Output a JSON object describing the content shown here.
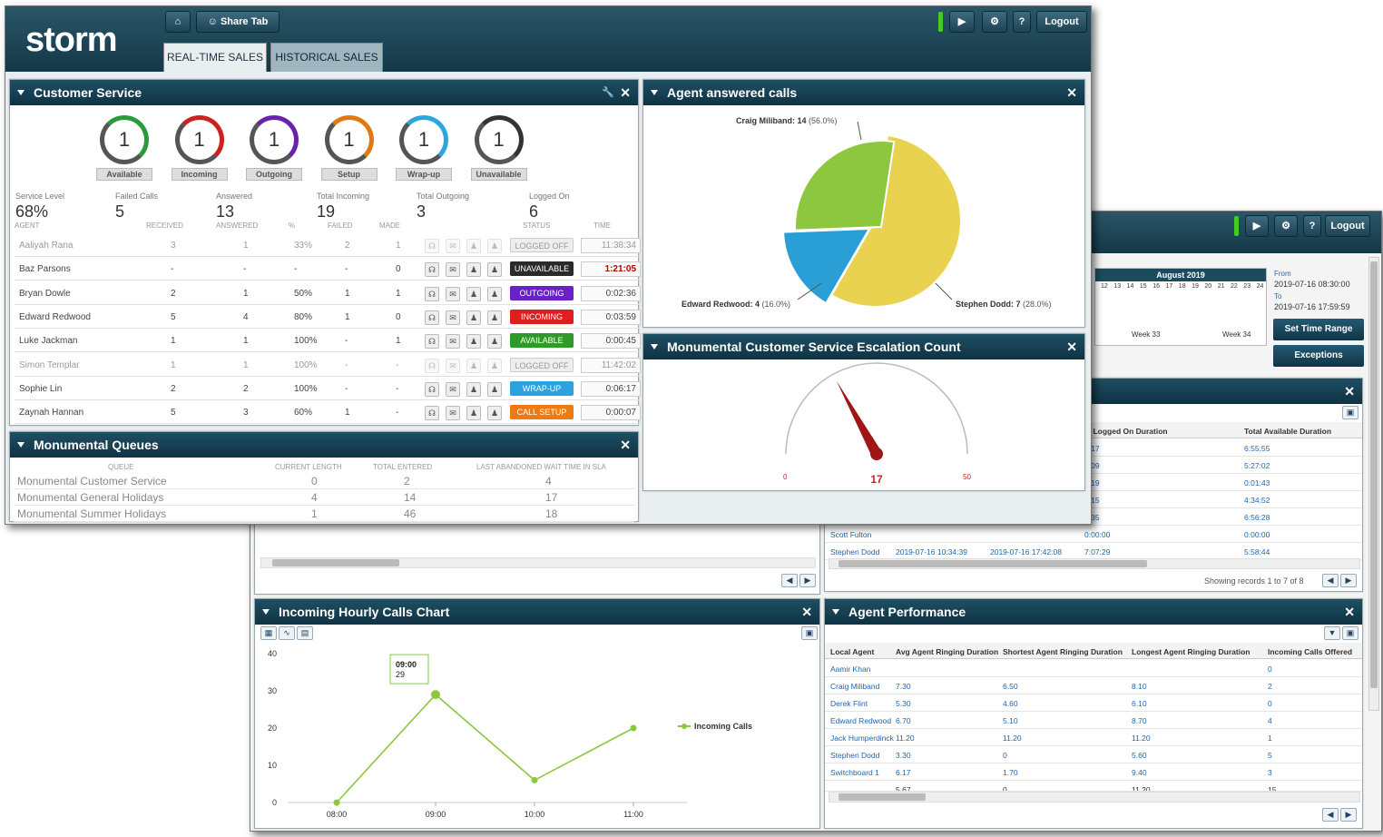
{
  "header": {
    "logo": "storm",
    "share_tab": "Share Tab",
    "logout": "Logout",
    "help": "?",
    "tabs": [
      "REAL-TIME SALES",
      "HISTORICAL SALES"
    ]
  },
  "customer_service": {
    "title": "Customer Service",
    "dials": [
      {
        "value": "1",
        "label": "Available",
        "color": "#2a9a3a"
      },
      {
        "value": "1",
        "label": "Incoming",
        "color": "#cc2222"
      },
      {
        "value": "1",
        "label": "Outgoing",
        "color": "#6a22aa"
      },
      {
        "value": "1",
        "label": "Setup",
        "color": "#e07a10"
      },
      {
        "value": "1",
        "label": "Wrap-up",
        "color": "#2aa8dd"
      },
      {
        "value": "1",
        "label": "Unavailable",
        "color": "#333333"
      }
    ],
    "kpis": [
      {
        "label": "Service Level",
        "value": "68%"
      },
      {
        "label": "Failed Calls",
        "value": "5"
      },
      {
        "label": "Answered",
        "value": "13"
      },
      {
        "label": "Total Incoming",
        "value": "19"
      },
      {
        "label": "Total Outgoing",
        "value": "3"
      },
      {
        "label": "Logged On",
        "value": "6"
      }
    ],
    "columns": [
      "Agent",
      "Received",
      "Answered",
      "%",
      "Failed",
      "Made",
      "Status",
      "Time"
    ],
    "agents": [
      {
        "name": "Aaliyah Rana",
        "received": "3",
        "answered": "1",
        "pct": "33%",
        "failed": "2",
        "made": "1",
        "status": "LOGGED OFF",
        "time": "11:38:34",
        "dim": true
      },
      {
        "name": "Baz Parsons",
        "received": "-",
        "answered": "-",
        "pct": "-",
        "failed": "-",
        "made": "0",
        "status": "UNAVAILABLE",
        "time": "1:21:05",
        "dim": false
      },
      {
        "name": "Bryan Dowle",
        "received": "2",
        "answered": "1",
        "pct": "50%",
        "failed": "1",
        "made": "1",
        "status": "OUTGOING",
        "time": "0:02:36",
        "dim": false
      },
      {
        "name": "Edward Redwood",
        "received": "5",
        "answered": "4",
        "pct": "80%",
        "failed": "1",
        "made": "0",
        "status": "INCOMING",
        "time": "0:03:59",
        "dim": false
      },
      {
        "name": "Luke Jackman",
        "received": "1",
        "answered": "1",
        "pct": "100%",
        "failed": "-",
        "made": "1",
        "status": "AVAILABLE",
        "time": "0:00:45",
        "dim": false
      },
      {
        "name": "Simon Templar",
        "received": "1",
        "answered": "1",
        "pct": "100%",
        "failed": "-",
        "made": "-",
        "status": "LOGGED OFF",
        "time": "11:42:02",
        "dim": true
      },
      {
        "name": "Sophie Lin",
        "received": "2",
        "answered": "2",
        "pct": "100%",
        "failed": "-",
        "made": "-",
        "status": "WRAP-UP",
        "time": "0:06:17",
        "dim": false
      },
      {
        "name": "Zaynah Hannan",
        "received": "5",
        "answered": "3",
        "pct": "60%",
        "failed": "1",
        "made": "-",
        "status": "CALL SETUP",
        "time": "0:00:07",
        "dim": false
      }
    ]
  },
  "queues": {
    "title": "Monumental Queues",
    "columns": [
      "Queue",
      "Current Length",
      "Total Entered",
      "Last Abandoned Wait Time in SLA"
    ],
    "rows": [
      {
        "queue": "Monumental Customer Service",
        "current": "0",
        "entered": "2",
        "abandoned": "4"
      },
      {
        "queue": "Monumental General Holidays",
        "current": "4",
        "entered": "14",
        "abandoned": "17"
      },
      {
        "queue": "Monumental Summer Holidays",
        "current": "1",
        "entered": "46",
        "abandoned": "18"
      }
    ]
  },
  "agent_answered": {
    "title": "Agent answered calls",
    "slice_labels": [
      "Craig Miliband: 14 (56.0%)",
      "Edward Redwood: 4 (16.0%)",
      "Stephen Dodd: 7 (28.0%)"
    ]
  },
  "escalation": {
    "title": "Monumental Customer Service Escalation Count",
    "min": "0",
    "max": "50",
    "value": "17"
  },
  "back_window": {
    "calendar_month": "August 2019",
    "days": [
      "12",
      "13",
      "14",
      "15",
      "16",
      "17",
      "18",
      "19",
      "20",
      "21",
      "22",
      "23",
      "24"
    ],
    "week_labels": [
      "Week 33",
      "Week 34"
    ],
    "from_label": "From",
    "from_value": "2019-07-16 08:30:00",
    "to_label": "To",
    "to_value": "2019-07-16 17:59:59",
    "set_time_range": "Set Time Range",
    "exceptions": "Exceptions",
    "duration_grid": {
      "headers": [
        "al Logged On Duration",
        "Total Available Duration"
      ],
      "rows": [
        [
          "5:17",
          "6:55:55"
        ],
        [
          "5:09",
          "5:27:02"
        ],
        [
          "3:19",
          "0:01:43"
        ],
        [
          "7:15",
          "4:34:52"
        ],
        [
          "3:35",
          "6:56:28"
        ],
        [
          "Scott Fulton",
          "0:00:00",
          "0:00:00"
        ],
        [
          "Stephen Dodd",
          "2019-07-16 10:34:39",
          "2019-07-16 17:42:08",
          "7:07:29",
          "5:58:44"
        ]
      ],
      "showing": "Showing records 1 to 7 of 8"
    }
  },
  "hourly_chart": {
    "title": "Incoming Hourly Calls Chart",
    "tooltip_time": "09:00",
    "tooltip_value": "29"
  },
  "chart_data": {
    "type": "line",
    "x": [
      "08:00",
      "09:00",
      "10:00",
      "11:00"
    ],
    "series": [
      {
        "name": "Incoming Calls",
        "values": [
          0,
          29,
          6,
          20
        ],
        "color": "#8dc63f"
      }
    ],
    "yticks": [
      "0",
      "10",
      "20",
      "30",
      "40"
    ],
    "ylim": [
      0,
      40
    ],
    "legend": "right"
  },
  "agent_performance": {
    "title": "Agent Performance",
    "headers": [
      "Local Agent",
      "Avg Agent Ringing Duration",
      "Shortest Agent Ringing Duration",
      "Longest Agent Ringing Duration",
      "Incoming Calls Offered"
    ],
    "rows": [
      [
        "Aamir Khan",
        "",
        "",
        "",
        "0"
      ],
      [
        "Craig Miliband",
        "7.30",
        "6.50",
        "8.10",
        "2"
      ],
      [
        "Derek Flint",
        "5.30",
        "4.60",
        "6.10",
        "0"
      ],
      [
        "Edward Redwood",
        "6.70",
        "5.10",
        "8.70",
        "4"
      ],
      [
        "Jack Humperdinck",
        "11.20",
        "11.20",
        "11.20",
        "1"
      ],
      [
        "Stephen Dodd",
        "3.30",
        "0",
        "5.60",
        "5"
      ],
      [
        "Switchboard 1",
        "6.17",
        "1.70",
        "9.40",
        "3"
      ],
      [
        "",
        "5.67",
        "0",
        "11.20",
        "15"
      ]
    ]
  }
}
